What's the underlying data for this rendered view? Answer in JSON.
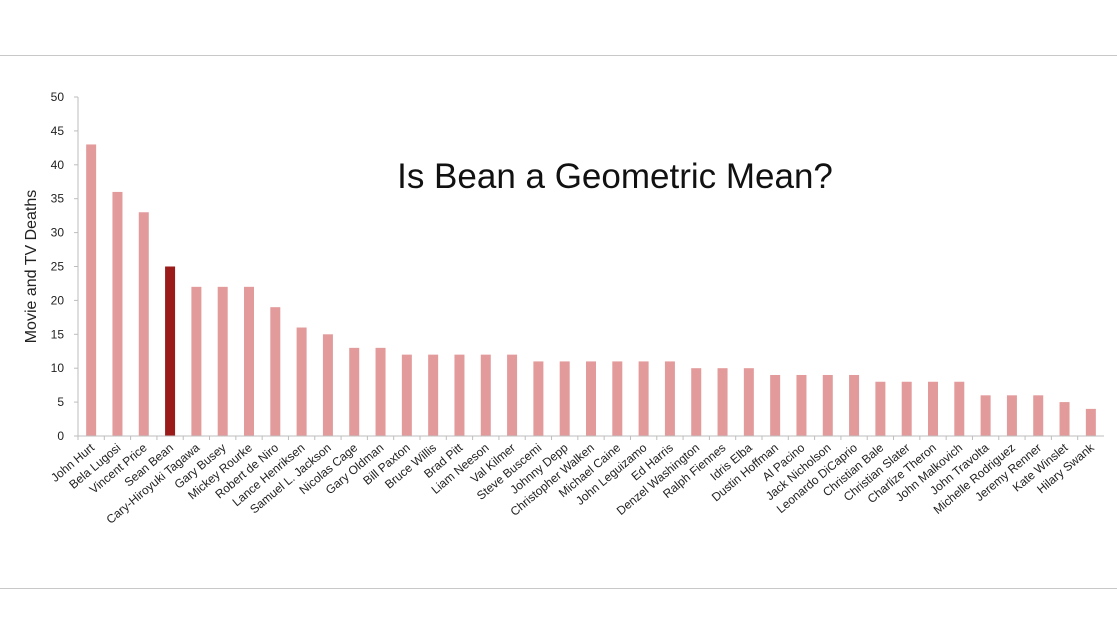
{
  "chart_data": {
    "type": "bar",
    "title": "Is Bean a Geometric Mean?",
    "xlabel": "",
    "ylabel": "Movie and TV Deaths",
    "ylim": [
      0,
      50
    ],
    "yticks": [
      0,
      5,
      10,
      15,
      20,
      25,
      30,
      35,
      40,
      45,
      50
    ],
    "grid": false,
    "bar_color": "#e29a9a",
    "highlight_color": "#9b1a1a",
    "highlight_index": 3,
    "categories": [
      "John Hurt",
      "Bela Lugosi",
      "Vincent Price",
      "Sean Bean",
      "Cary-Hiroyuki Tagawa",
      "Gary Busey",
      "Mickey Rourke",
      "Robert de Niro",
      "Lance Henriksen",
      "Samuel L. Jackson",
      "Nicolas Cage",
      "Gary Oldman",
      "Bill Paxton",
      "Bruce Willis",
      "Brad Pitt",
      "Liam Neeson",
      "Val Kilmer",
      "Steve Buscemi",
      "Johnny Depp",
      "Christopher Walken",
      "Michael Caine",
      "John Leguizamo",
      "Ed Harris",
      "Denzel Washington",
      "Ralph Fiennes",
      "Idris Elba",
      "Dustin Hoffman",
      "Al Pacino",
      "Jack Nicholson",
      "Leonardo DiCaprio",
      "Christian Bale",
      "Christian Slater",
      "Charlize Theron",
      "John Malkovich",
      "John Travolta",
      "Michelle Rodriguez",
      "Jeremy Renner",
      "Kate Winslet",
      "Hilary Swank"
    ],
    "values": [
      43,
      36,
      33,
      25,
      22,
      22,
      22,
      19,
      16,
      15,
      13,
      13,
      12,
      12,
      12,
      12,
      12,
      11,
      11,
      11,
      11,
      11,
      11,
      10,
      10,
      10,
      9,
      9,
      9,
      9,
      8,
      8,
      8,
      8,
      6,
      6,
      6,
      5,
      4
    ]
  }
}
